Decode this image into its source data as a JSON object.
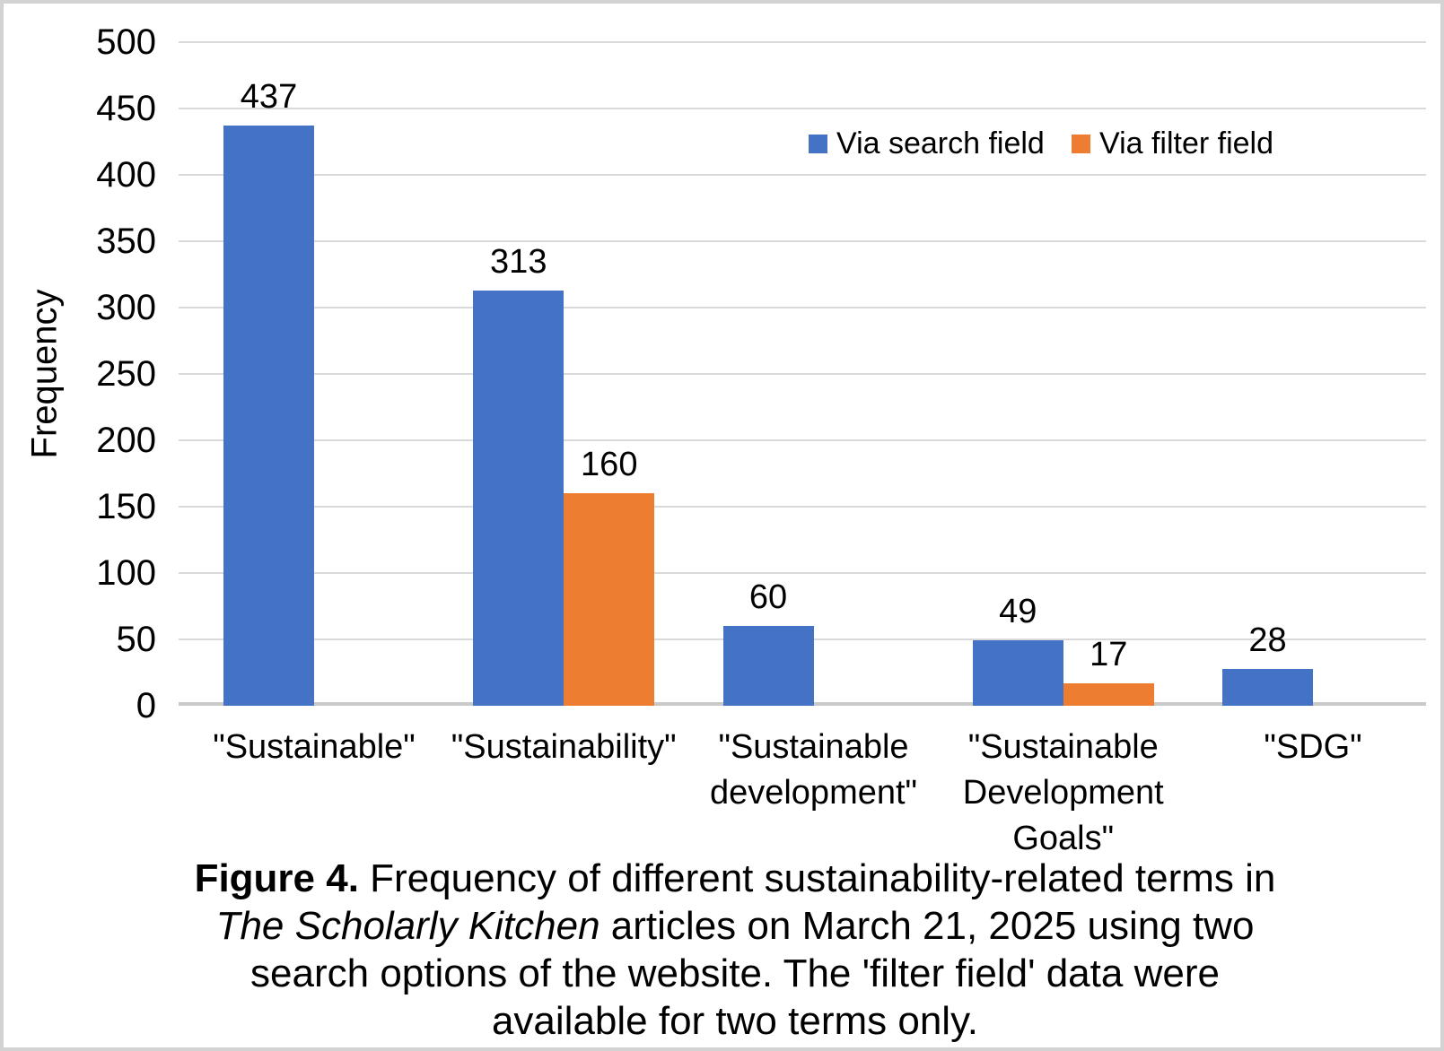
{
  "chart_data": {
    "type": "bar",
    "categories": [
      "\"Sustainable\"",
      "\"Sustainability\"",
      "\"Sustainable development\"",
      "\"Sustainable Development Goals\"",
      "\"SDG\""
    ],
    "series": [
      {
        "name": "Via search field",
        "color": "#4472C4",
        "values": [
          437,
          313,
          60,
          49,
          28
        ]
      },
      {
        "name": "Via filter field",
        "color": "#ED7D31",
        "values": [
          null,
          160,
          null,
          17,
          null
        ]
      }
    ],
    "ylabel": "Frequency",
    "xlabel": "",
    "ylim": [
      0,
      500
    ],
    "ytick_step": 50,
    "grid": true,
    "legend_position": "top-right",
    "data_labels": true
  },
  "caption": {
    "lines": [
      [
        {
          "style": "bold",
          "text": "Figure 4."
        },
        {
          "style": "normal",
          "text": " Frequency of different sustainability-related terms in"
        }
      ],
      [
        {
          "style": "italic",
          "text": "The Scholarly Kitchen"
        },
        {
          "style": "normal",
          "text": " articles on March 21, 2025 using two"
        }
      ],
      [
        {
          "style": "normal",
          "text": "search options of the website. The 'filter field' data were"
        }
      ],
      [
        {
          "style": "normal",
          "text": "available for two terms only."
        }
      ]
    ]
  },
  "colors": {
    "series_blue": "#4472C4",
    "series_orange": "#ED7D31",
    "gridline": "#D9D9D9",
    "axis_line": "#C9C9C9",
    "text": "#000000",
    "frame_border": "#D3D3D3",
    "background": "#FFFFFF"
  }
}
